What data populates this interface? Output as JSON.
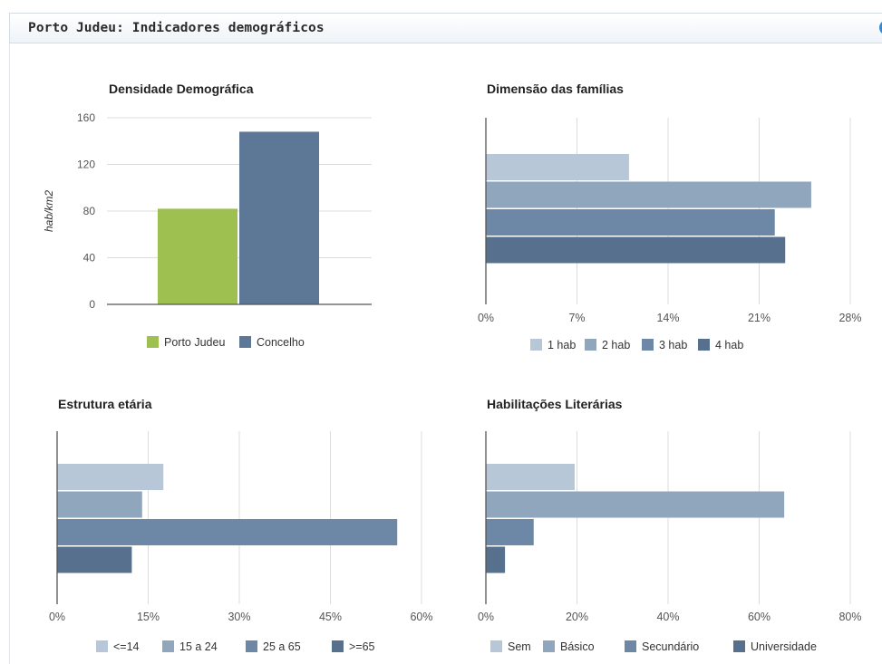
{
  "panel": {
    "title": "Porto Judeu: Indicadores demográficos",
    "info_icon": "info-icon"
  },
  "colors": {
    "green": "#9dc050",
    "blue": "#5c7896",
    "s1": "#b7c7d8",
    "s2": "#90a6bd",
    "s3": "#6d87a6",
    "s4": "#56708e",
    "grid": "#dcdcdc",
    "axis": "#555555",
    "text": "#555555"
  },
  "chart_data": [
    {
      "id": "densidade",
      "type": "bar",
      "title": "Densidade Demográfica",
      "ylabel": "hab/km2",
      "ylim": [
        0,
        160
      ],
      "yticks": [
        "0",
        "40",
        "80",
        "120",
        "160"
      ],
      "series": [
        {
          "name": "Porto Judeu",
          "value": 82
        },
        {
          "name": "Concelho",
          "value": 148
        }
      ],
      "legend": "bottom",
      "grid": true
    },
    {
      "id": "familias",
      "type": "bar",
      "orientation": "horizontal",
      "title": "Dimensão das famílias",
      "xlim": [
        0,
        28
      ],
      "xticks": [
        "0%",
        "7%",
        "14%",
        "21%",
        "28%"
      ],
      "series": [
        {
          "name": "1 hab",
          "value": 11
        },
        {
          "name": "2 hab",
          "value": 25
        },
        {
          "name": "3 hab",
          "value": 22.2
        },
        {
          "name": "4 hab",
          "value": 23
        }
      ],
      "legend": "bottom",
      "grid": true
    },
    {
      "id": "etaria",
      "type": "bar",
      "orientation": "horizontal",
      "title": "Estrutura etária",
      "xlim": [
        0,
        60
      ],
      "xticks": [
        "0%",
        "15%",
        "30%",
        "45%",
        "60%"
      ],
      "series": [
        {
          "name": "<=14",
          "value": 17.5
        },
        {
          "name": "15 a 24",
          "value": 14
        },
        {
          "name": "25 a 65",
          "value": 56
        },
        {
          "name": ">=65",
          "value": 12.3
        }
      ],
      "legend": "bottom",
      "grid": true
    },
    {
      "id": "habilitacoes",
      "type": "bar",
      "orientation": "horizontal",
      "title": "Habilitações Literárias",
      "xlim": [
        0,
        80
      ],
      "xticks": [
        "0%",
        "20%",
        "40%",
        "60%",
        "80%"
      ],
      "series": [
        {
          "name": "Sem",
          "value": 19.5
        },
        {
          "name": "Básico",
          "value": 65.5
        },
        {
          "name": "Secundário",
          "value": 10.5
        },
        {
          "name": "Universidade",
          "value": 4.2
        }
      ],
      "legend": "bottom",
      "grid": true
    }
  ]
}
